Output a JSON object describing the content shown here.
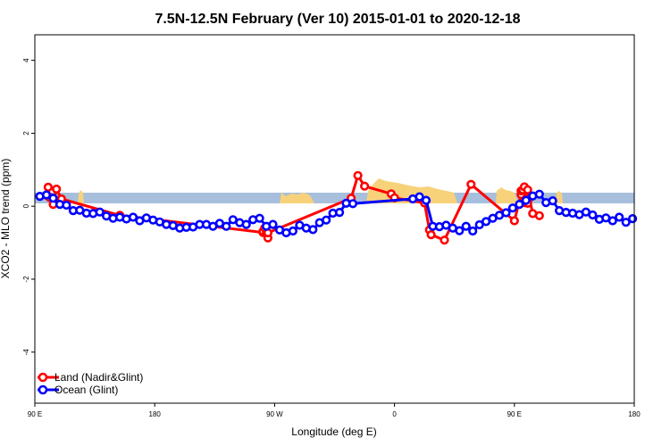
{
  "chart_data": {
    "type": "line",
    "title": "7.5N-12.5N February (Ver 10)   2015-01-01 to 2020-12-18",
    "xlabel": "Longitude (deg E)",
    "ylabel": "XCO2 - MLO trend (ppm)",
    "xlim": [
      90,
      450
    ],
    "ylim": [
      -5.4,
      4.7
    ],
    "x_ticks": [
      90,
      162,
      234,
      306,
      378,
      450
    ],
    "x_tick_labels": [
      "90 E",
      "180",
      "90 W",
      "0",
      "90 E",
      "180"
    ],
    "y_ticks": [
      -4,
      -2,
      0,
      2,
      4
    ],
    "y_tick_labels": [
      "-4",
      "-2",
      "0",
      "2",
      "4"
    ],
    "legend_position": "bottom-left",
    "colors": {
      "land": "#ff0000",
      "ocean": "#0000ff",
      "band": "#a7bfdc",
      "land_mask": "#f7d27a"
    },
    "series": [
      {
        "name": "Land (Nadir&Glint)",
        "color": "#ff0000",
        "x": [
          97,
          98,
          99,
          101,
          103,
          106,
          141,
          227,
          227,
          228,
          229,
          230,
          230,
          280,
          284,
          288,
          304,
          306,
          324,
          327,
          328,
          336,
          352,
          378,
          382,
          382,
          383,
          384,
          384,
          386,
          386,
          387,
          389,
          393
        ],
        "y": [
          0.3,
          0.52,
          0.24,
          0.05,
          0.47,
          0.2,
          -0.25,
          -0.72,
          -0.69,
          -0.6,
          -0.75,
          -0.87,
          -0.73,
          0.22,
          0.84,
          0.55,
          0.34,
          0.23,
          0.09,
          -0.65,
          -0.78,
          -0.93,
          0.6,
          -0.4,
          0.32,
          0.42,
          0.45,
          0.53,
          0.1,
          0.45,
          0.08,
          0.23,
          -0.2,
          -0.26
        ]
      },
      {
        "name": "Ocean (Glint)",
        "color": "#0000ff",
        "x": [
          93,
          97,
          101,
          105,
          109,
          113,
          117,
          121,
          125,
          129,
          133,
          137,
          141,
          145,
          149,
          153,
          157,
          161,
          165,
          169,
          173,
          177,
          181,
          185,
          189,
          193,
          197,
          201,
          205,
          209,
          213,
          217,
          221,
          225,
          229,
          233,
          237,
          241,
          245,
          249,
          253,
          257,
          261,
          265,
          269,
          273,
          277,
          281,
          317,
          321,
          325,
          329,
          333,
          337,
          341,
          345,
          349,
          353,
          357,
          361,
          365,
          369,
          373,
          377,
          381,
          385,
          389,
          393,
          397,
          401,
          405,
          409,
          413,
          417,
          421,
          425,
          429,
          433,
          437,
          441,
          445,
          449
        ],
        "y": [
          0.27,
          0.31,
          0.22,
          0.05,
          0.03,
          -0.12,
          -0.11,
          -0.19,
          -0.2,
          -0.16,
          -0.27,
          -0.33,
          -0.3,
          -0.35,
          -0.3,
          -0.4,
          -0.32,
          -0.38,
          -0.43,
          -0.5,
          -0.53,
          -0.6,
          -0.58,
          -0.57,
          -0.5,
          -0.5,
          -0.55,
          -0.47,
          -0.55,
          -0.37,
          -0.45,
          -0.5,
          -0.37,
          -0.33,
          -0.55,
          -0.5,
          -0.65,
          -0.73,
          -0.68,
          -0.52,
          -0.6,
          -0.64,
          -0.45,
          -0.38,
          -0.19,
          -0.17,
          0.08,
          0.07,
          0.2,
          0.26,
          0.16,
          -0.55,
          -0.56,
          -0.52,
          -0.6,
          -0.67,
          -0.55,
          -0.68,
          -0.51,
          -0.42,
          -0.33,
          -0.25,
          -0.18,
          -0.05,
          0.05,
          0.16,
          0.28,
          0.33,
          0.1,
          0.15,
          -0.12,
          -0.17,
          -0.19,
          -0.23,
          -0.16,
          -0.24,
          -0.36,
          -0.32,
          -0.4,
          -0.3,
          -0.44,
          -0.34
        ]
      }
    ]
  }
}
